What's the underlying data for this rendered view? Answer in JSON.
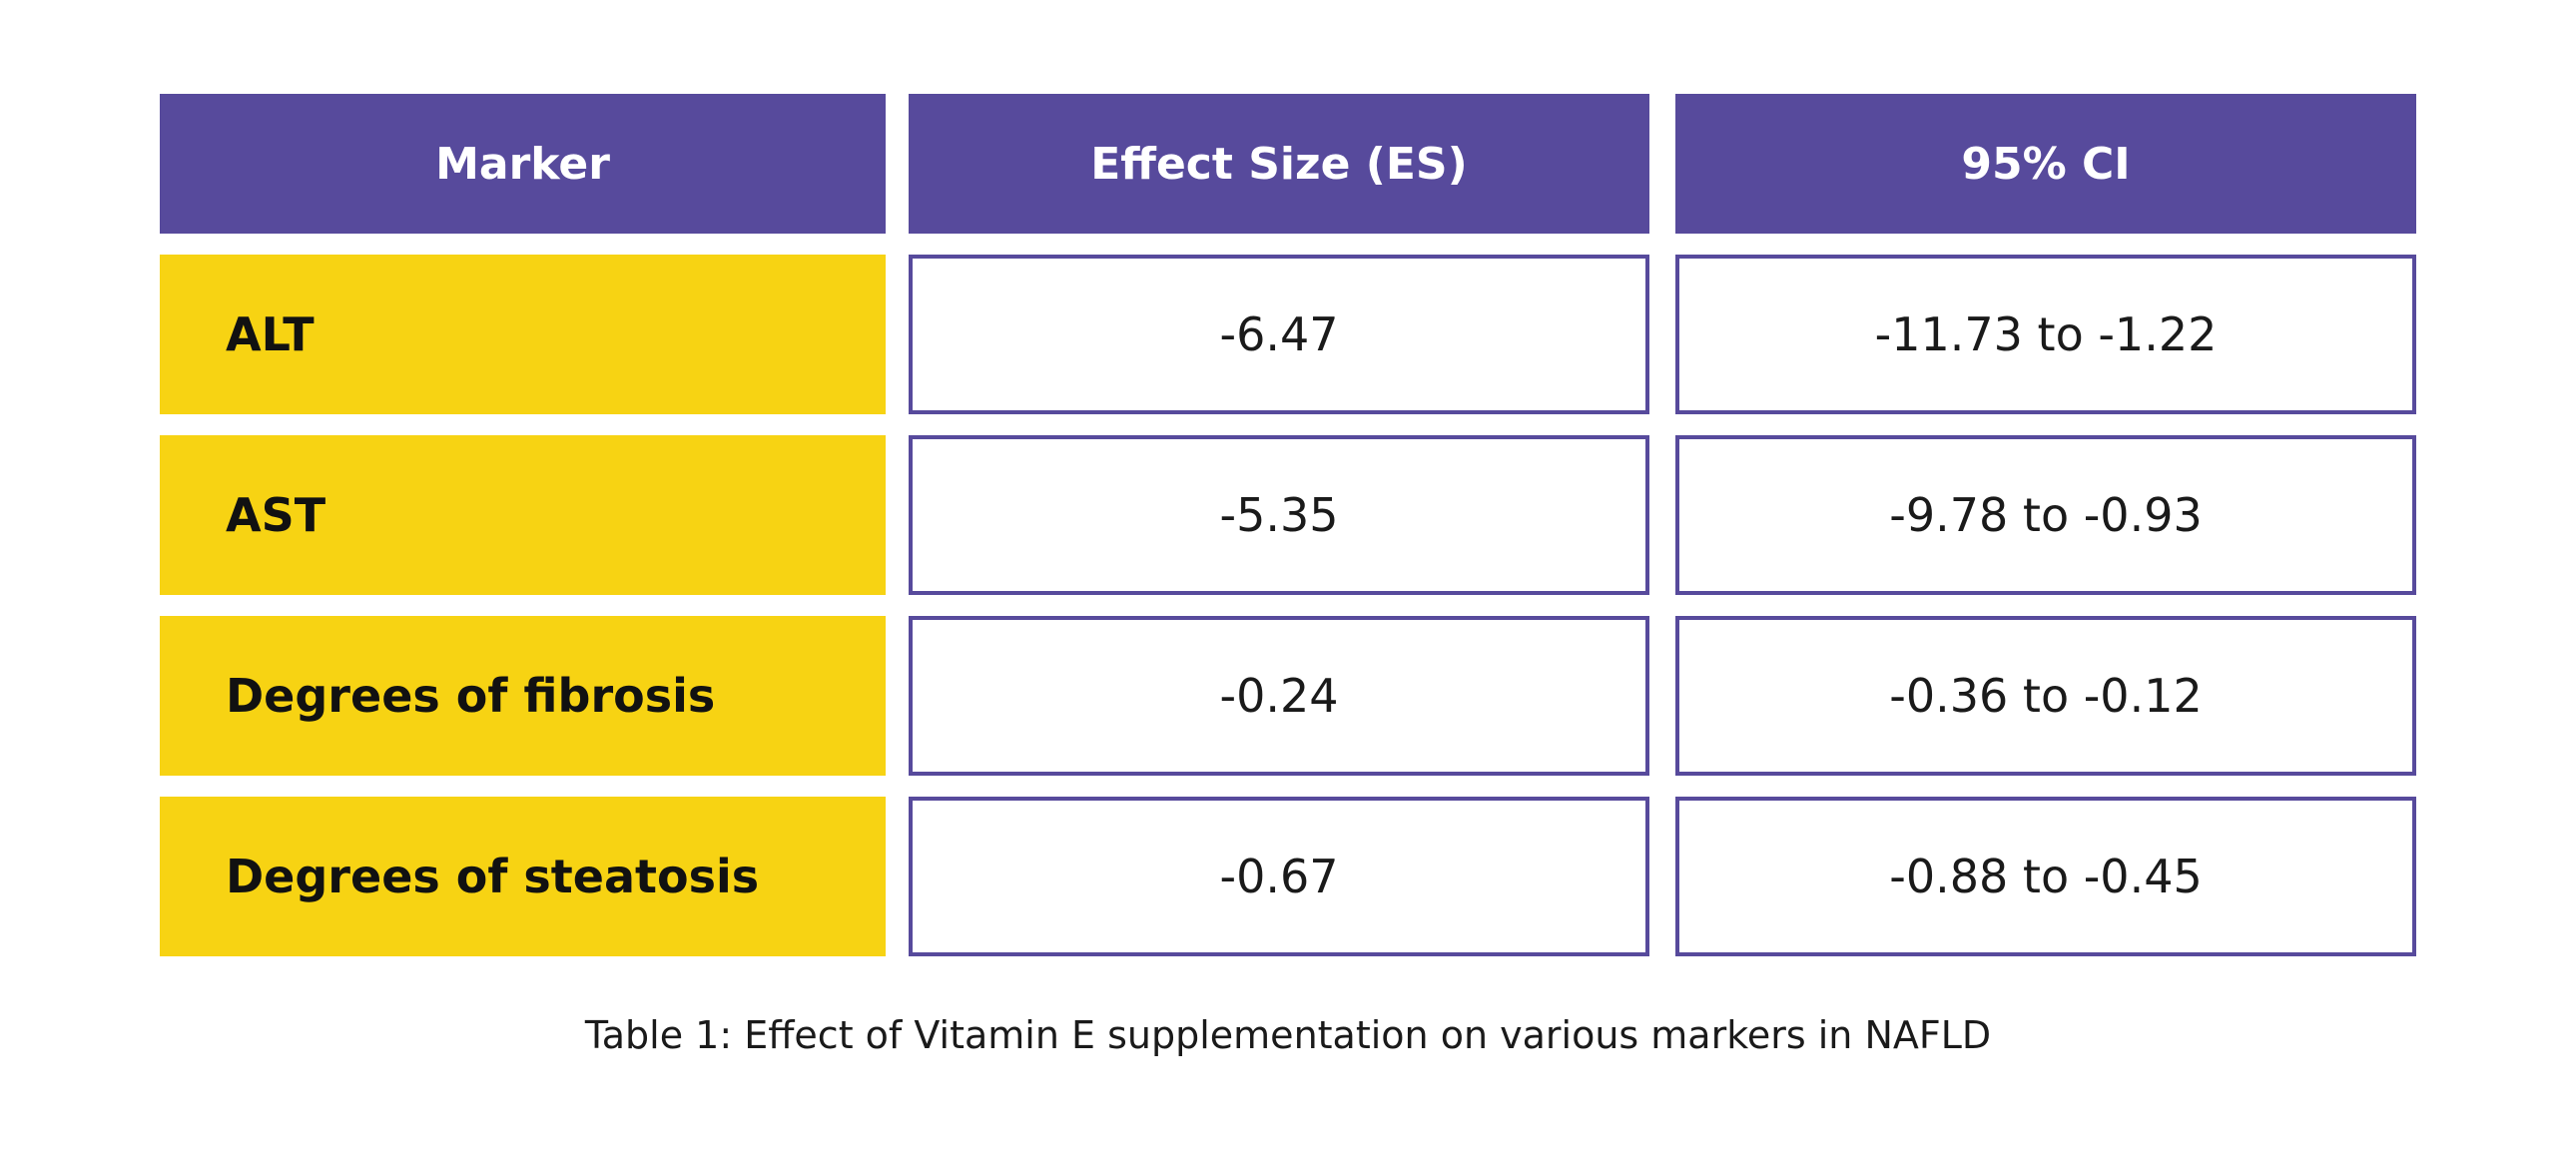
{
  "table": {
    "header": [
      "Marker",
      "Effect Size (ES)",
      "95% CI"
    ],
    "rows": [
      [
        "ALT",
        "-6.47",
        "-11.73 to -1.22"
      ],
      [
        "AST",
        "-5.35",
        "-9.78 to -0.93"
      ],
      [
        "Degrees of fibrosis",
        "-0.24",
        "-0.36 to -0.12"
      ],
      [
        "Degrees of steatosis",
        "-0.67",
        "-0.88 to -0.45"
      ]
    ]
  },
  "caption": "Table 1: Effect of Vitamin E supplementation on various markers in NAFLD"
}
